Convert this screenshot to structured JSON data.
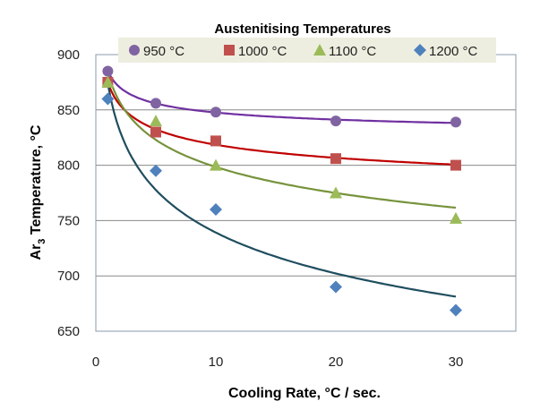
{
  "chart_data": {
    "type": "scatter",
    "title": "",
    "legend_title": "Austenitising Temperatures",
    "legend_position": "top",
    "xlabel": "Cooling Rate, °C / sec.",
    "ylabel_main": "Ar",
    "ylabel_sub": "3",
    "ylabel_rest": " Temperature, °C",
    "xlim": [
      0,
      35
    ],
    "ylim": [
      650,
      900
    ],
    "xticks": [
      0,
      10,
      20,
      30
    ],
    "yticks": [
      650,
      700,
      750,
      800,
      850,
      900
    ],
    "grid": "horizontal",
    "trendlines": true,
    "x": [
      1,
      5,
      10,
      20,
      30
    ],
    "series": [
      {
        "name": "950 °C",
        "marker": "circle",
        "color": "#8064a2",
        "line_color": "#7030a0",
        "values": [
          885,
          856,
          848,
          840,
          839
        ]
      },
      {
        "name": "1000 °C",
        "marker": "square",
        "color": "#c0504d",
        "line_color": "#c00000",
        "values": [
          875,
          830,
          822,
          806,
          800
        ]
      },
      {
        "name": "1100 °C",
        "marker": "triangle",
        "color": "#9bbb59",
        "line_color": "#77933c",
        "values": [
          875,
          840,
          800,
          775,
          752
        ]
      },
      {
        "name": "1200 °C",
        "marker": "diamond",
        "color": "#4f81bd",
        "line_color": "#1f4e5f",
        "values": [
          860,
          795,
          760,
          690,
          669
        ]
      }
    ]
  }
}
